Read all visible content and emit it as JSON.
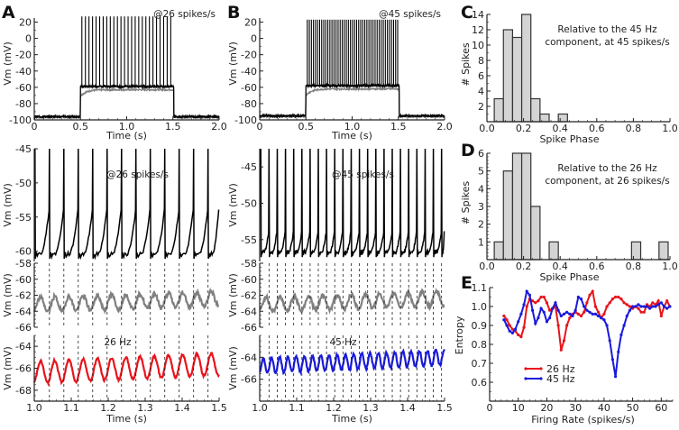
{
  "figure": {
    "panels": [
      "A",
      "B",
      "C",
      "D",
      "E"
    ]
  },
  "chart_data": [
    {
      "id": "A_top",
      "panel": "A",
      "type": "line",
      "annotation": "@26 spikes/s",
      "xlabel": "Time (s)",
      "ylabel": "Vm (mV)",
      "xlim": [
        0,
        2.0
      ],
      "ylim": [
        -100,
        25
      ],
      "xticks": [
        "0",
        "0.5",
        "1.0",
        "1.5",
        "2.0"
      ],
      "yticks": [
        "20",
        "0",
        "-20",
        "-40",
        "-60",
        "-80",
        "-100"
      ],
      "stimulus": {
        "on": 0.5,
        "off": 1.5
      },
      "rest_mV": -97,
      "plateau_gray_mV": -63,
      "spike_peak_mV": 27,
      "spike_rate": 26,
      "series": [
        {
          "name": "black trace",
          "color": "#000000"
        },
        {
          "name": "gray trace",
          "color": "#808080"
        }
      ]
    },
    {
      "id": "B_top",
      "panel": "B",
      "type": "line",
      "annotation": "@45 spikes/s",
      "xlabel": "Time (s)",
      "ylabel": "Vm (mV)",
      "xlim": [
        0,
        2.0
      ],
      "ylim": [
        -100,
        25
      ],
      "xticks": [
        "0",
        "0.5",
        "1.0",
        "1.5",
        "2.0"
      ],
      "yticks": [
        "20",
        "0",
        "-20",
        "-40",
        "-60",
        "-80",
        "-100"
      ],
      "stimulus": {
        "on": 0.5,
        "off": 1.5
      },
      "rest_mV": -96,
      "plateau_gray_mV": -62,
      "spike_peak_mV": 23,
      "spike_rate": 45,
      "series": [
        {
          "name": "black trace",
          "color": "#000000"
        },
        {
          "name": "gray trace",
          "color": "#808080"
        }
      ]
    },
    {
      "id": "A_zoom_spikes",
      "panel": "A",
      "type": "line",
      "annotation": "@26 spikes/s",
      "ylabel": "Vm (mV)",
      "xlim": [
        1.0,
        1.5
      ],
      "ylim": [
        -61.5,
        -45
      ],
      "yticks": [
        "-45",
        "-50",
        "-55",
        "-60"
      ],
      "spike_times": [
        1.002,
        1.041,
        1.08,
        1.119,
        1.158,
        1.197,
        1.236,
        1.275,
        1.314,
        1.353,
        1.392,
        1.431,
        1.47
      ],
      "trough_mV": -60.5,
      "color": "#000000"
    },
    {
      "id": "A_gray",
      "panel": "A",
      "type": "line",
      "ylabel": "Vm (mV)",
      "xlim": [
        1.0,
        1.5
      ],
      "ylim": [
        -66,
        -58
      ],
      "yticks": [
        "-58",
        "-60",
        "-62",
        "-64",
        "-66"
      ],
      "mean_mV": -62.8,
      "color": "#808080"
    },
    {
      "id": "A_filtered",
      "panel": "A",
      "type": "line",
      "annotation": "26 Hz",
      "xlabel": "Time (s)",
      "ylabel": "Vm (mV)",
      "xlim": [
        1.0,
        1.5
      ],
      "ylim": [
        -69,
        -63
      ],
      "xticks": [
        "1.0",
        "1.1",
        "1.2",
        "1.3",
        "1.4",
        "1.5"
      ],
      "yticks": [
        "-64",
        "-66",
        "-68"
      ],
      "frequency_hz": 26,
      "mean_mV": -66,
      "amplitude_mV": 1.0,
      "color": "#e8141c"
    },
    {
      "id": "B_zoom_spikes",
      "panel": "B",
      "type": "line",
      "annotation": "@45 spikes/s",
      "ylabel": "Vm (mV)",
      "xlim": [
        1.0,
        1.5
      ],
      "ylim": [
        -58,
        -42.5
      ],
      "yticks": [
        "-45",
        "-50",
        "-55"
      ],
      "spike_rate": 45,
      "trough_mV": -56.8,
      "color": "#000000"
    },
    {
      "id": "B_gray",
      "panel": "B",
      "type": "line",
      "ylabel": "Vm (mV)",
      "xlim": [
        1.0,
        1.5
      ],
      "ylim": [
        -66,
        -58
      ],
      "yticks": [
        "-58",
        "-60",
        "-62",
        "-64",
        "-66"
      ],
      "mean_mV": -62.8,
      "color": "#808080"
    },
    {
      "id": "B_filtered",
      "panel": "B",
      "type": "line",
      "annotation": "45  Hz",
      "xlabel": "Time (s)",
      "ylabel": "Vm (mV)",
      "xlim": [
        1.0,
        1.5
      ],
      "ylim": [
        -68,
        -62
      ],
      "xticks": [
        "1.0",
        "1.1",
        "1.2",
        "1.3",
        "1.4",
        "1.5"
      ],
      "yticks": [
        "-64",
        "-66"
      ],
      "frequency_hz": 45,
      "mean_mV": -64.4,
      "amplitude_mV": 0.7,
      "color": "#1a1adb"
    },
    {
      "id": "C_hist",
      "panel": "C",
      "type": "bar",
      "annotation": [
        "Relative to the 45 Hz",
        "component, at 45 spikes/s"
      ],
      "xlabel": "Spike Phase",
      "ylabel": "# Spikes",
      "xlim": [
        0,
        1.0
      ],
      "ylim": [
        0,
        14
      ],
      "xticks": [
        "0.0",
        "0.2",
        "0.4",
        "0.6",
        "0.8",
        "1.0"
      ],
      "yticks": [
        "2",
        "4",
        "6",
        "8",
        "10",
        "12",
        "14"
      ],
      "bin_width": 0.05,
      "bin_starts": [
        0.04,
        0.09,
        0.14,
        0.19,
        0.24,
        0.29,
        0.39
      ],
      "values": [
        3,
        12,
        11,
        14,
        3,
        1,
        1
      ],
      "fill": "#d4d4d4"
    },
    {
      "id": "D_hist",
      "panel": "D",
      "type": "bar",
      "annotation": [
        "Relative to the 26 Hz",
        "component, at 26 spikes/s"
      ],
      "xlabel": "Spike Phase",
      "ylabel": "# Spikes",
      "xlim": [
        0,
        1.0
      ],
      "ylim": [
        0,
        6
      ],
      "xticks": [
        "0.0",
        "0.2",
        "0.4",
        "0.6",
        "0.8",
        "1.0"
      ],
      "yticks": [
        "1",
        "2",
        "3",
        "4",
        "5",
        "6"
      ],
      "bin_width": 0.05,
      "bin_starts": [
        0.04,
        0.09,
        0.14,
        0.19,
        0.24,
        0.34,
        0.79,
        0.94
      ],
      "values": [
        1,
        5,
        6,
        6,
        3,
        1,
        1,
        1
      ],
      "fill": "#d4d4d4"
    },
    {
      "id": "E_entropy",
      "panel": "E",
      "type": "line",
      "xlabel": "Firing Rate (spikes/s)",
      "ylabel": "Entropy",
      "xlim": [
        0,
        64
      ],
      "ylim": [
        0.5,
        1.1
      ],
      "xticks": [
        "0",
        "10",
        "20",
        "30",
        "40",
        "50",
        "60"
      ],
      "yticks": [
        "1.1",
        "1.0",
        "0.9",
        "0.8",
        "0.7",
        "0.6"
      ],
      "legend": "bottom-left",
      "x": [
        5,
        6,
        7,
        8,
        9,
        10,
        11,
        12,
        13,
        14,
        15,
        16,
        17,
        18,
        19,
        20,
        21,
        22,
        23,
        24,
        25,
        26,
        27,
        28,
        29,
        30,
        31,
        32,
        33,
        34,
        35,
        36,
        37,
        38,
        39,
        40,
        41,
        42,
        43,
        44,
        45,
        46,
        47,
        48,
        49,
        50,
        51,
        52,
        53,
        54,
        55,
        56,
        57,
        58,
        59,
        60,
        61,
        62,
        63
      ],
      "series": [
        {
          "name": "26 Hz",
          "color": "#e8141c",
          "values": [
            0.95,
            0.93,
            0.9,
            0.88,
            0.87,
            0.85,
            0.84,
            0.89,
            1.0,
            1.04,
            1.03,
            1.02,
            1.03,
            1.05,
            1.05,
            1.02,
            0.98,
            0.99,
            1.0,
            0.9,
            0.77,
            0.82,
            0.9,
            0.94,
            0.96,
            0.97,
            0.96,
            0.95,
            0.97,
            1.02,
            1.06,
            1.08,
            1.0,
            0.97,
            0.94,
            0.96,
            1.0,
            1.02,
            1.04,
            1.05,
            1.05,
            1.04,
            1.02,
            1.01,
            1.0,
            0.99,
            1.0,
            0.99,
            0.97,
            0.97,
            1.01,
            1.0,
            1.02,
            1.01,
            1.03,
            0.95,
            1.0,
            1.03,
            1.0
          ]
        },
        {
          "name": "45 Hz",
          "color": "#1a1adb",
          "values": [
            0.93,
            0.9,
            0.87,
            0.86,
            0.88,
            0.92,
            0.96,
            1.01,
            1.08,
            1.06,
            0.98,
            0.91,
            0.94,
            0.99,
            0.97,
            0.92,
            0.94,
            0.99,
            1.02,
            0.98,
            0.95,
            0.96,
            0.97,
            0.96,
            0.95,
            0.98,
            1.05,
            1.04,
            1.0,
            0.98,
            0.97,
            0.96,
            0.96,
            0.95,
            0.94,
            0.93,
            0.9,
            0.82,
            0.72,
            0.63,
            0.76,
            0.85,
            0.9,
            0.95,
            0.98,
            1.0,
            1.0,
            1.01,
            1.0,
            1.0,
            1.0,
            0.99,
            1.0,
            1.0,
            1.01,
            1.02,
            1.0,
            0.99,
            1.0
          ]
        }
      ]
    }
  ]
}
